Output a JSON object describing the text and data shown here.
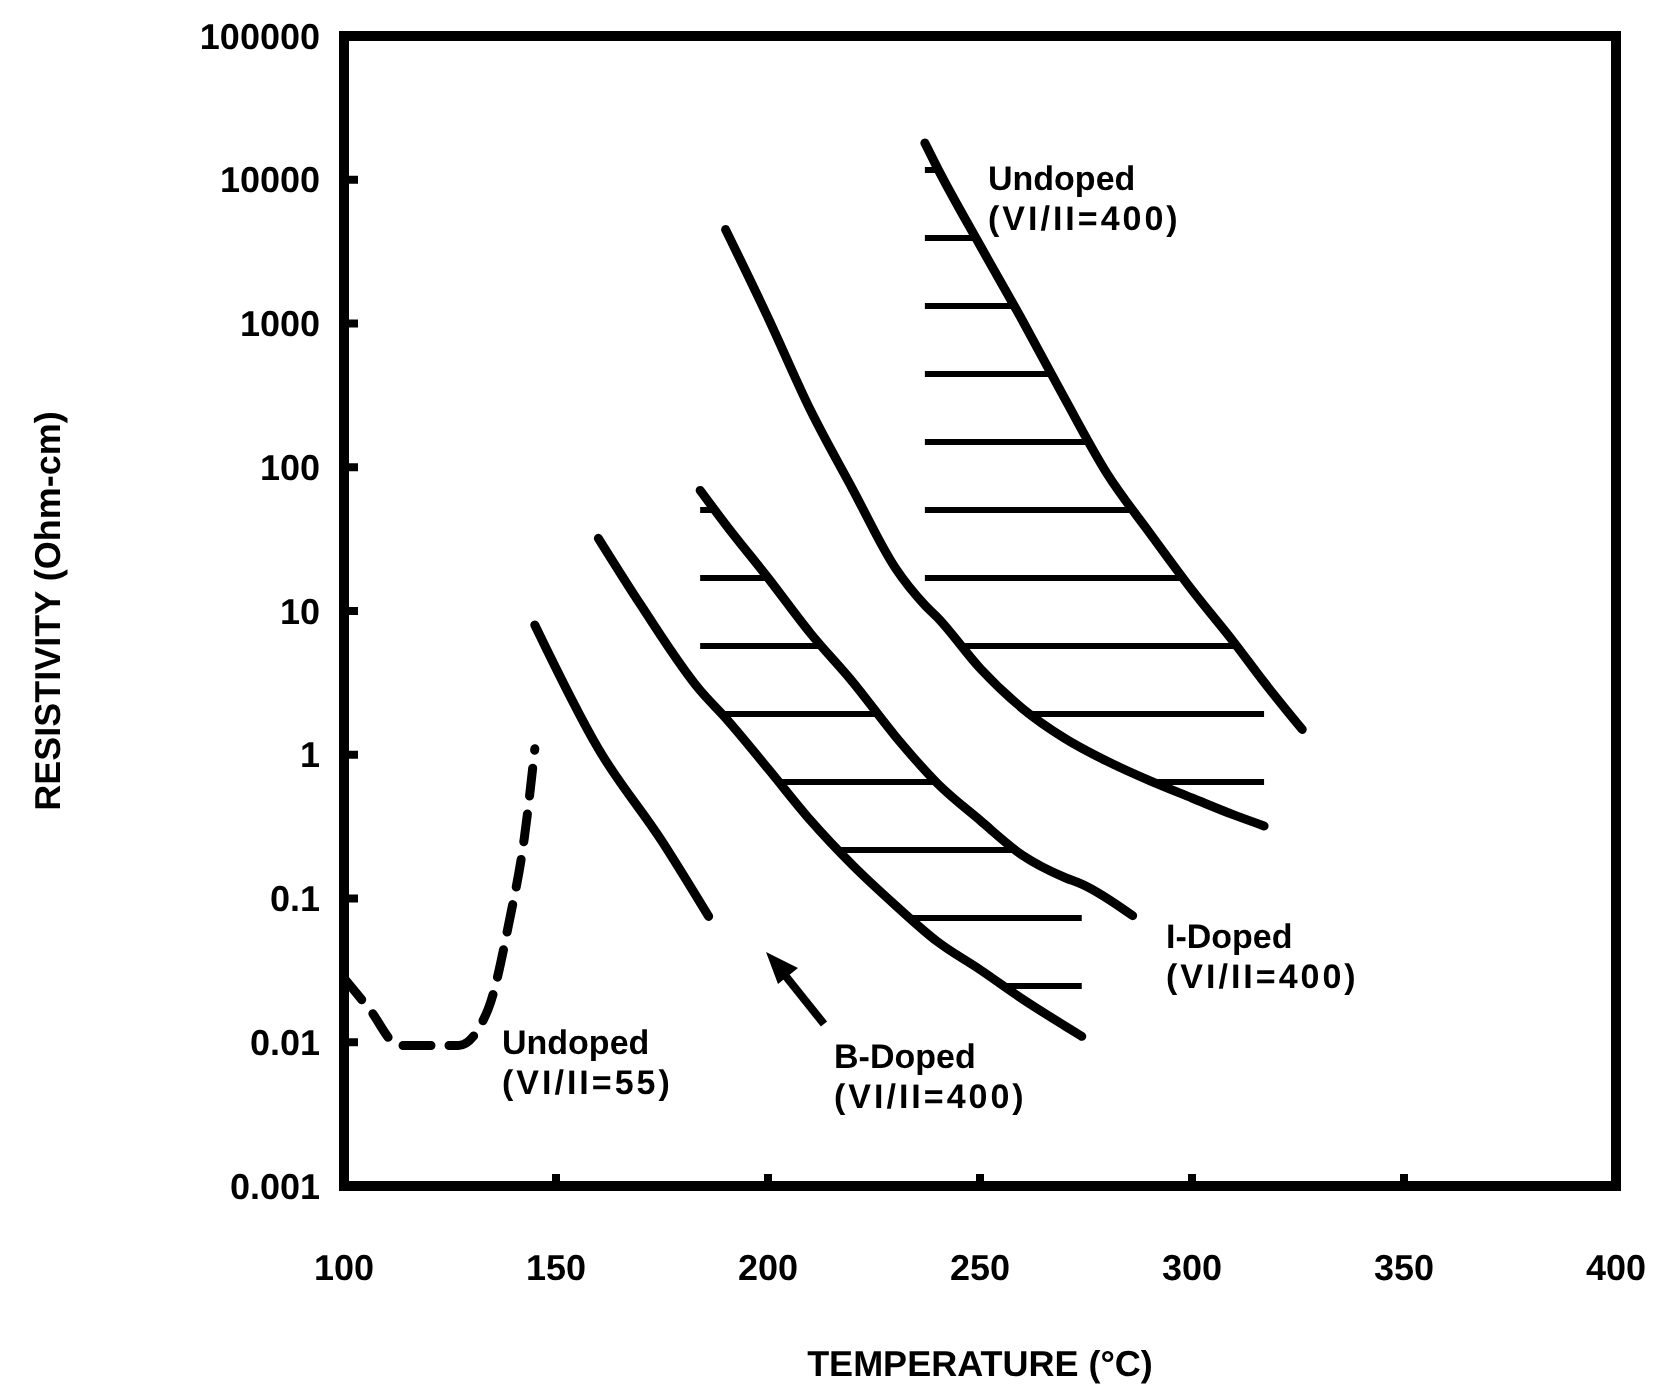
{
  "chart_data": {
    "type": "line",
    "xlabel": "TEMPERATURE (°C)",
    "ylabel": "RESISTIVITY (Ohm-cm)",
    "xlim": [
      100,
      400
    ],
    "xticks": [
      100,
      150,
      200,
      250,
      300,
      350,
      400
    ],
    "ylim": [
      0.001,
      100000
    ],
    "yticks": [
      {
        "value": 0.001,
        "label": "0.001"
      },
      {
        "value": 0.01,
        "label": "0.01"
      },
      {
        "value": 0.1,
        "label": "0.1"
      },
      1,
      10,
      100,
      1000,
      10000,
      100000
    ],
    "log": "y",
    "grid": false,
    "series": [
      {
        "color": "#000000",
        "line_style": "solid",
        "x": [
          190,
          200,
          210,
          220,
          230,
          237,
          240,
          250,
          260,
          270,
          280,
          290,
          300,
          310,
          317
        ],
        "values": [
          4500,
          1100,
          250,
          70,
          20,
          11,
          9,
          4,
          2.1,
          1.3,
          0.9,
          0.66,
          0.5,
          0.38,
          0.32
        ]
      },
      {
        "color": "#000000",
        "line_style": "solid",
        "x": [
          237,
          240,
          250,
          260,
          270,
          280,
          290,
          300,
          310,
          317,
          326
        ],
        "values": [
          18000,
          12000,
          3500,
          1050,
          300,
          90,
          35,
          14,
          6,
          3.2,
          1.5
        ]
      },
      {
        "color": "#000000",
        "line_style": "solid",
        "x": [
          160,
          170,
          184,
          190,
          200,
          210,
          220,
          230,
          240,
          250,
          260,
          270,
          274
        ],
        "values": [
          32,
          11,
          2.8,
          1.8,
          0.8,
          0.35,
          0.17,
          0.09,
          0.05,
          0.032,
          0.02,
          0.013,
          0.011
        ]
      },
      {
        "color": "#000000",
        "line_style": "solid",
        "x": [
          184,
          190,
          200,
          210,
          220,
          230,
          240,
          250,
          260,
          270,
          274,
          286
        ],
        "values": [
          69,
          40,
          17,
          7,
          3.2,
          1.35,
          0.63,
          0.35,
          0.2,
          0.14,
          0.126,
          0.076
        ]
      },
      {
        "color": "#000000",
        "line_style": "solid",
        "x": [
          145,
          160,
          175,
          186
        ],
        "values": [
          8,
          1.1,
          0.25,
          0.075
        ]
      },
      {
        "color": "#000000",
        "line_style": "dashed",
        "x": [
          100,
          106,
          113,
          127,
          134,
          139,
          142.5,
          145
        ],
        "values": [
          0.028,
          0.017,
          0.0095,
          0.0095,
          0.017,
          0.07,
          0.26,
          1.1
        ]
      }
    ],
    "annotations": [
      "Undoped\n(VI/II=400)",
      "I-Doped\n(VI/II=400)",
      "B-Doped\n(VI/II=400)",
      "Undoped\n(VI/II=55)"
    ]
  }
}
